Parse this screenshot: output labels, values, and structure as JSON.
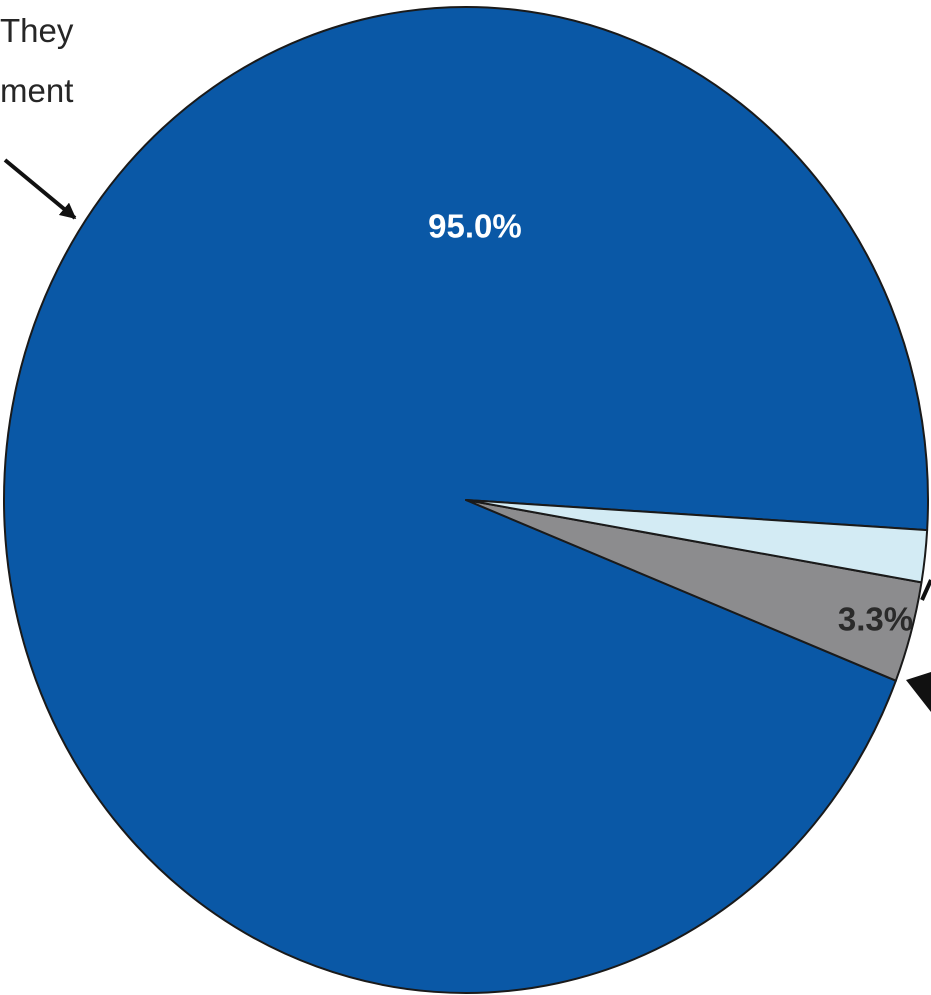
{
  "chart_data": {
    "type": "pie",
    "title": "",
    "slices": [
      {
        "label": "95.0%",
        "value": 95.0,
        "color": "#0a58a6",
        "label_color": "#ffffff"
      },
      {
        "label": "3.3%",
        "value": 3.3,
        "color": "#8c8c8e",
        "label_color": "#2a2a2a"
      },
      {
        "label": "",
        "value": 1.7,
        "color": "#d3ebf4",
        "label_color": "#2a2a2a"
      }
    ],
    "annotations": [
      {
        "lines": [
          "They",
          "ment"
        ]
      }
    ]
  }
}
